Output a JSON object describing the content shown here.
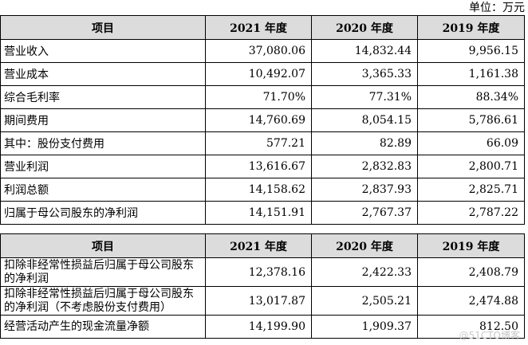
{
  "unit_label": "单位：万元",
  "table1": {
    "headers": [
      "项目",
      "2021 年度",
      "2020 年度",
      "2019 年度"
    ],
    "rows": [
      [
        "营业收入",
        "37,080.06",
        "14,832.44",
        "9,956.15"
      ],
      [
        "营业成本",
        "10,492.07",
        "3,365.33",
        "1,161.38"
      ],
      [
        "综合毛利率",
        "71.70%",
        "77.31%",
        "88.34%"
      ],
      [
        "期间费用",
        "14,760.69",
        "8,054.15",
        "5,786.61"
      ],
      [
        "其中：股份支付费用",
        "577.21",
        "82.89",
        "66.09"
      ],
      [
        "营业利润",
        "13,616.67",
        "2,832.83",
        "2,800.71"
      ],
      [
        "利润总额",
        "14,158.62",
        "2,837.93",
        "2,825.71"
      ],
      [
        "归属于母公司股东的净利润",
        "14,151.91",
        "2,767.37",
        "2,787.22"
      ]
    ]
  },
  "table2": {
    "headers": [
      "项目",
      "2021 年度",
      "2020 年度",
      "2019 年度"
    ],
    "rows": [
      [
        "扣除非经常性损益后归属于母公司股东的净利润",
        "12,378.16",
        "2,422.33",
        "2,408.79"
      ],
      [
        "扣除非经常性损益后归属于母公司股东的净利润（不考虑股份支付费用）",
        "13,017.87",
        "2,505.21",
        "2,474.88"
      ],
      [
        "经营活动产生的现金流量净额",
        "14,199.90",
        "1,909.37",
        "812.50"
      ]
    ]
  },
  "watermark": "@51CTO博客"
}
